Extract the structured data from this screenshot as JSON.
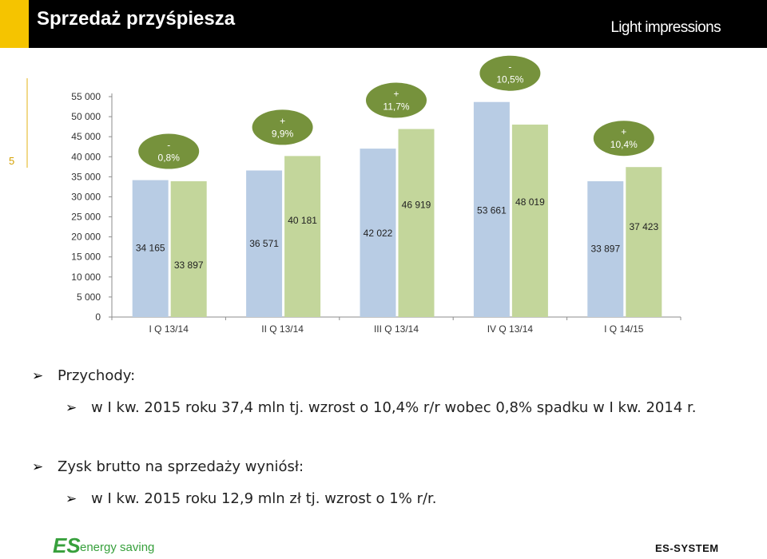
{
  "header": {
    "title": "Sprzedaż przyśpiesza",
    "tagline": "Light impressions",
    "accent_color": "#f5c400"
  },
  "slide_number": "5",
  "chart_data": {
    "type": "bar",
    "categories": [
      "I Q 13/14",
      "II Q 13/14",
      "III Q 13/14",
      "IV Q 13/14",
      "I Q 14/15"
    ],
    "series": [
      {
        "values": [
          34165,
          36571,
          42022,
          53661,
          33897
        ],
        "color": "#b8cce4"
      },
      {
        "values": [
          33897,
          40181,
          46919,
          48019,
          37423
        ],
        "color": "#c3d69b"
      }
    ],
    "value_labels": [
      [
        "34 165",
        "36 571",
        "42 022",
        "53 661",
        "33 897"
      ],
      [
        "33 897",
        "40 181",
        "46 919",
        "48 019",
        "37 423"
      ]
    ],
    "y_ticks": [
      "0",
      "5 000",
      "10 000",
      "15 000",
      "20 000",
      "25 000",
      "30 000",
      "35 000",
      "40 000",
      "45 000",
      "50 000",
      "55 000"
    ],
    "ylim": [
      0,
      55000
    ],
    "growth_badges": [
      {
        "sign": "-",
        "value": "0,8%"
      },
      {
        "sign": "+",
        "value": "9,9%"
      },
      {
        "sign": "+",
        "value": "11,7%"
      },
      {
        "sign": "-",
        "value": "10,5%"
      },
      {
        "sign": "+",
        "value": "10,4%"
      }
    ],
    "badge_color": "#76923c",
    "grid": false,
    "legend": "none"
  },
  "bullets": {
    "revenue_heading": "Przychody:",
    "revenue_detail": "w I kw. 2015 roku 37,4 mln tj. wzrost o 10,4% r/r wobec 0,8% spadku w I kw. 2014 r.",
    "profit_heading": "Zysk brutto na sprzedaży wyniósł:",
    "profit_detail": "w I kw. 2015 roku 12,9 mln zł tj. wzrost o 1% r/r.",
    "marker": "➢"
  },
  "footer": {
    "logo_left_mark": "ES",
    "logo_left_text": "energy saving",
    "logo_right_text": "ES-SYSTEM"
  }
}
